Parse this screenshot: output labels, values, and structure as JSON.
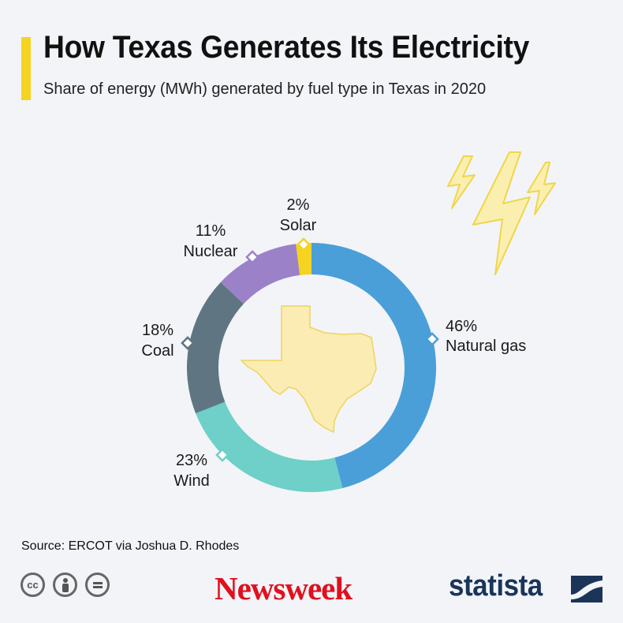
{
  "header": {
    "title": "How Texas Generates Its Electricity",
    "subtitle": "Share of energy (MWh) generated by fuel type in Texas in 2020"
  },
  "chart_data": {
    "type": "pie",
    "variant": "donut",
    "title": "How Texas Generates Its Electricity",
    "subtitle": "Share of energy (MWh) generated by fuel type in Texas in 2020",
    "unit": "%",
    "slices": [
      {
        "name": "Natural gas",
        "value": 46,
        "label": "46%",
        "color": "#4a9fd8"
      },
      {
        "name": "Wind",
        "value": 23,
        "label": "23%",
        "color": "#6ed0c8"
      },
      {
        "name": "Coal",
        "value": 18,
        "label": "18%",
        "color": "#5f7682"
      },
      {
        "name": "Nuclear",
        "value": 11,
        "label": "11%",
        "color": "#9b82c8"
      },
      {
        "name": "Solar",
        "value": 2,
        "label": "2%",
        "color": "#f5d320"
      }
    ]
  },
  "footer": {
    "source": "Source: ERCOT via Joshua D. Rhodes",
    "license_icons": [
      "cc-icon",
      "person-icon",
      "equals-icon"
    ],
    "brand_newsweek": "Newsweek",
    "brand_statista": "statista"
  },
  "colors": {
    "accent": "#f5d320",
    "background": "#f2f4f8",
    "newsweek_red": "#e0101e",
    "statista_navy": "#1a3558"
  }
}
